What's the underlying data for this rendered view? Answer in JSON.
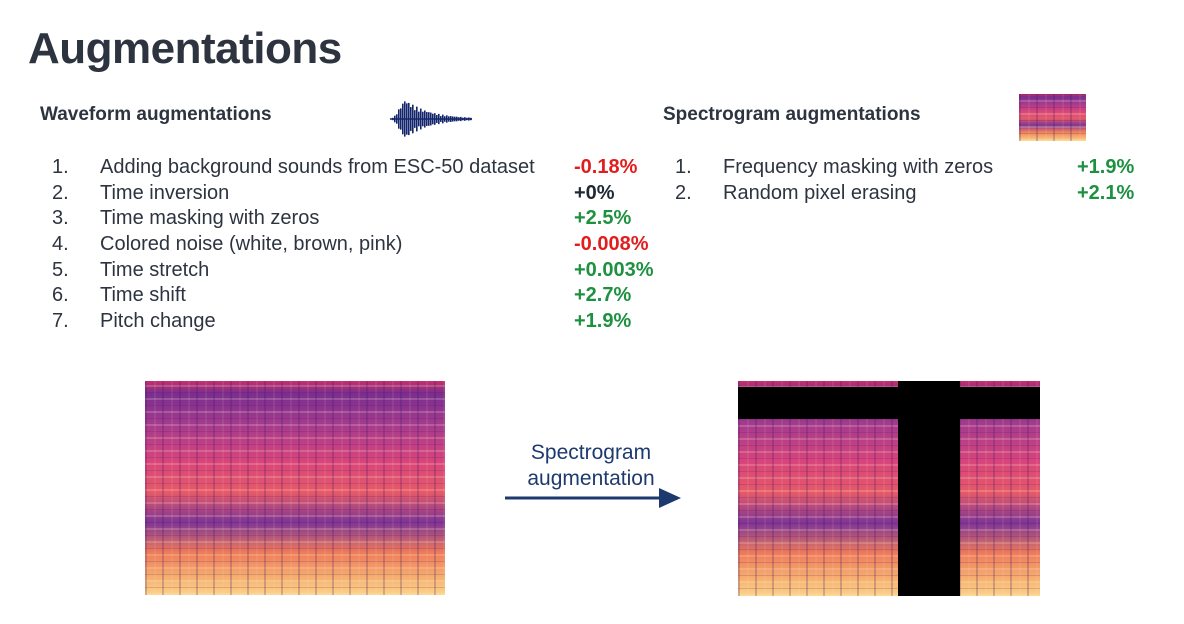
{
  "title": "Augmentations",
  "waveform": {
    "heading": "Waveform augmentations",
    "items": [
      {
        "num": "1.",
        "label": "Adding background sounds from ESC-50 dataset",
        "delta": "-0.18%",
        "sign": "neg"
      },
      {
        "num": "2.",
        "label": "Time inversion",
        "delta": "+0%",
        "sign": "zero"
      },
      {
        "num": "3.",
        "label": "Time masking with zeros",
        "delta": "+2.5%",
        "sign": "pos"
      },
      {
        "num": "4.",
        "label": "Colored noise (white, brown, pink)",
        "delta": "-0.008%",
        "sign": "neg"
      },
      {
        "num": "5.",
        "label": "Time stretch",
        "delta": "+0.003%",
        "sign": "pos"
      },
      {
        "num": "6.",
        "label": "Time shift",
        "delta": "+2.7%",
        "sign": "pos"
      },
      {
        "num": "7.",
        "label": "Pitch change",
        "delta": "+1.9%",
        "sign": "pos"
      }
    ]
  },
  "spectrogram": {
    "heading": "Spectrogram augmentations",
    "items": [
      {
        "num": "1.",
        "label": "Frequency masking with zeros",
        "delta": "+1.9%",
        "sign": "pos"
      },
      {
        "num": "2.",
        "label": "Random pixel erasing",
        "delta": "+2.1%",
        "sign": "pos"
      }
    ]
  },
  "arrow": {
    "line1": "Spectrogram",
    "line2": "augmentation"
  },
  "colors": {
    "positive": "#1e9140",
    "negative": "#e11d1d",
    "neutral": "#1f2933",
    "arrow": "#1d3a6e",
    "waveform": "#14266b"
  },
  "icons": {
    "waveform": "waveform-icon",
    "spectrogram_thumb": "spectrogram-thumbnail-icon"
  }
}
